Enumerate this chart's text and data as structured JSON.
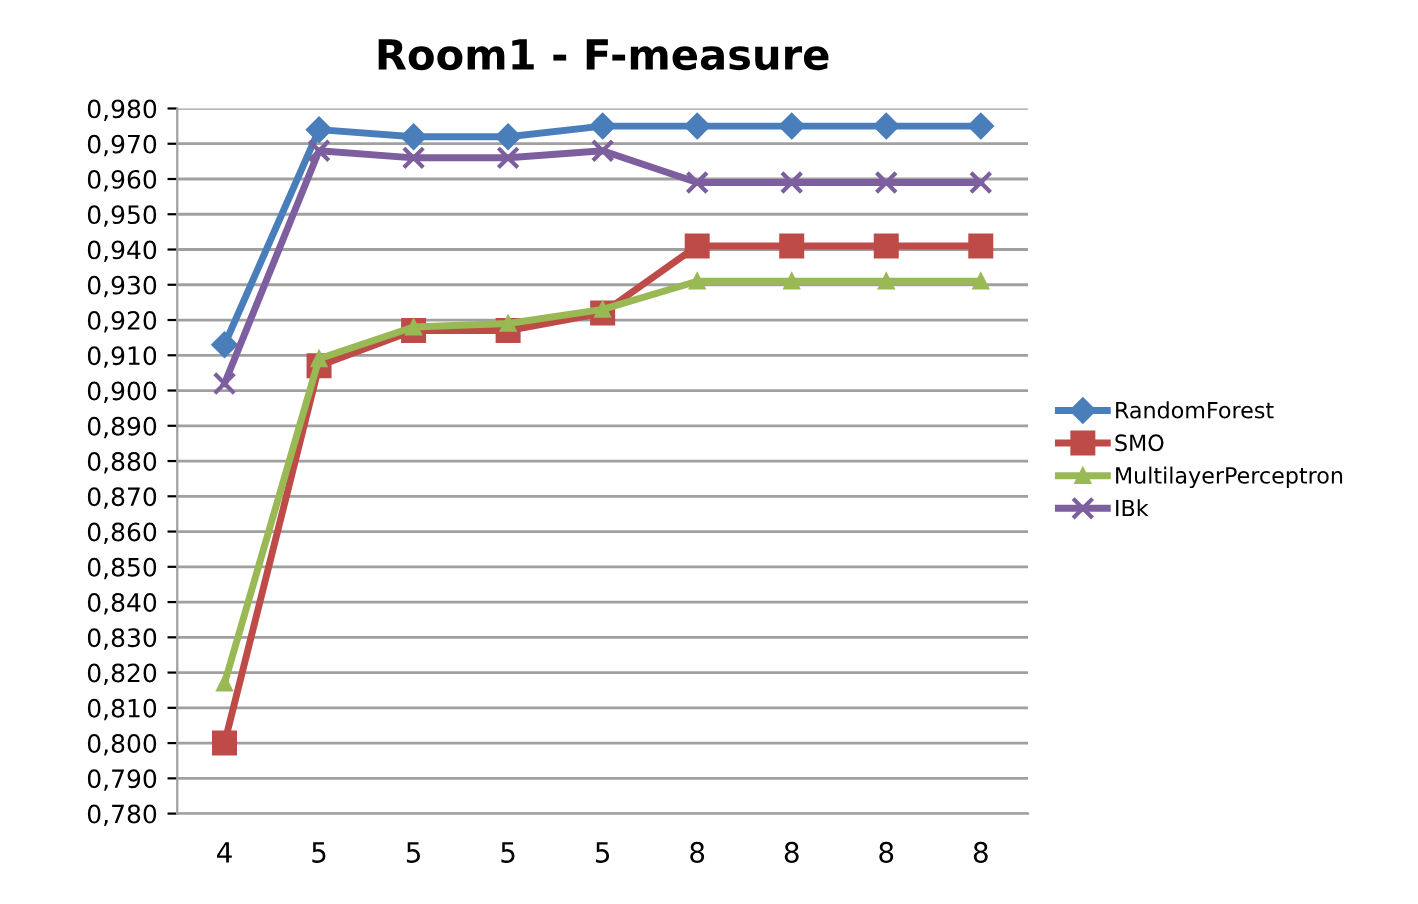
{
  "chart_data": {
    "type": "line",
    "title": "Room1 - F-measure",
    "categories": [
      "4",
      "5",
      "5",
      "5",
      "5",
      "8",
      "8",
      "8",
      "8"
    ],
    "series": [
      {
        "name": "RandomForest",
        "color": "#4a7ebb",
        "marker": "diamond",
        "values": [
          0.913,
          0.974,
          0.972,
          0.972,
          0.975,
          0.975,
          0.975,
          0.975,
          0.975
        ]
      },
      {
        "name": "SMO",
        "color": "#be4b48",
        "marker": "square",
        "values": [
          0.8,
          0.907,
          0.917,
          0.917,
          0.922,
          0.941,
          0.941,
          0.941,
          0.941
        ]
      },
      {
        "name": "MultilayerPerceptron",
        "color": "#98b954",
        "marker": "triangle",
        "values": [
          0.817,
          0.909,
          0.918,
          0.919,
          0.923,
          0.931,
          0.931,
          0.931,
          0.931
        ]
      },
      {
        "name": "IBk",
        "color": "#7d5fa0",
        "marker": "cross",
        "values": [
          0.902,
          0.968,
          0.966,
          0.966,
          0.968,
          0.959,
          0.959,
          0.959,
          0.959
        ]
      }
    ],
    "ylim": [
      0.78,
      0.98
    ],
    "yticks": [
      {
        "value": 0.78,
        "label": "0,780"
      },
      {
        "value": 0.79,
        "label": "0,790"
      },
      {
        "value": 0.8,
        "label": "0,800"
      },
      {
        "value": 0.81,
        "label": "0,810"
      },
      {
        "value": 0.82,
        "label": "0,820"
      },
      {
        "value": 0.83,
        "label": "0,830"
      },
      {
        "value": 0.84,
        "label": "0,840"
      },
      {
        "value": 0.85,
        "label": "0,850"
      },
      {
        "value": 0.86,
        "label": "0,860"
      },
      {
        "value": 0.87,
        "label": "0,870"
      },
      {
        "value": 0.88,
        "label": "0,880"
      },
      {
        "value": 0.89,
        "label": "0,890"
      },
      {
        "value": 0.9,
        "label": "0,900"
      },
      {
        "value": 0.91,
        "label": "0,910"
      },
      {
        "value": 0.92,
        "label": "0,920"
      },
      {
        "value": 0.93,
        "label": "0,930"
      },
      {
        "value": 0.94,
        "label": "0,940"
      },
      {
        "value": 0.95,
        "label": "0,950"
      },
      {
        "value": 0.96,
        "label": "0,960"
      },
      {
        "value": 0.97,
        "label": "0,970"
      },
      {
        "value": 0.98,
        "label": "0,980"
      }
    ],
    "grid": "y",
    "legend": "right",
    "line_style": "solid"
  }
}
